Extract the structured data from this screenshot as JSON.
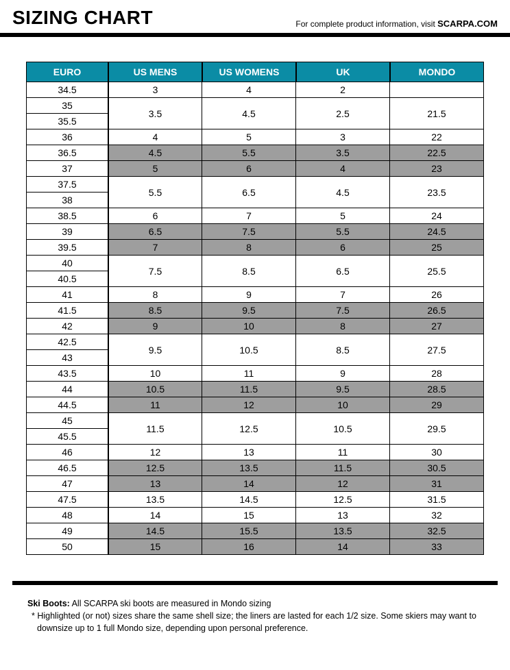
{
  "header": {
    "title": "SIZING CHART",
    "subtitle_prefix": "For complete product information, visit ",
    "brand": "SCARPA.COM"
  },
  "colors": {
    "header_bg": "#0b8ca5",
    "shade_bg": "#9e9e9e",
    "border": "#000000",
    "page_bg": "#ffffff"
  },
  "typography": {
    "title_fontsize": 28,
    "cell_fontsize": 14,
    "notes_fontsize": 12.5
  },
  "table": {
    "columns": [
      "EURO",
      "US MENS",
      "US WOMENS",
      "UK",
      "MONDO"
    ],
    "euro_sizes": [
      "34.5",
      "35",
      "35.5",
      "36",
      "36.5",
      "37",
      "37.5",
      "38",
      "38.5",
      "39",
      "39.5",
      "40",
      "40.5",
      "41",
      "41.5",
      "42",
      "42.5",
      "43",
      "43.5",
      "44",
      "44.5",
      "45",
      "45.5",
      "46",
      "46.5",
      "47",
      "47.5",
      "48",
      "49",
      "50"
    ],
    "euro_row_height": 23,
    "data_rows": [
      {
        "span": 1,
        "shaded": false,
        "cells": [
          "3",
          "4",
          "2",
          ""
        ]
      },
      {
        "span": 2,
        "shaded": false,
        "cells": [
          "3.5",
          "4.5",
          "2.5",
          "21.5"
        ]
      },
      {
        "span": 1,
        "shaded": false,
        "cells": [
          "4",
          "5",
          "3",
          "22"
        ]
      },
      {
        "span": 1,
        "shaded": true,
        "cells": [
          "4.5",
          "5.5",
          "3.5",
          "22.5"
        ]
      },
      {
        "span": 1,
        "shaded": true,
        "cells": [
          "5",
          "6",
          "4",
          "23"
        ]
      },
      {
        "span": 2,
        "shaded": false,
        "cells": [
          "5.5",
          "6.5",
          "4.5",
          "23.5"
        ]
      },
      {
        "span": 1,
        "shaded": false,
        "cells": [
          "6",
          "7",
          "5",
          "24"
        ]
      },
      {
        "span": 1,
        "shaded": true,
        "cells": [
          "6.5",
          "7.5",
          "5.5",
          "24.5"
        ]
      },
      {
        "span": 1,
        "shaded": true,
        "cells": [
          "7",
          "8",
          "6",
          "25"
        ]
      },
      {
        "span": 2,
        "shaded": false,
        "cells": [
          "7.5",
          "8.5",
          "6.5",
          "25.5"
        ]
      },
      {
        "span": 1,
        "shaded": false,
        "cells": [
          "8",
          "9",
          "7",
          "26"
        ]
      },
      {
        "span": 1,
        "shaded": true,
        "cells": [
          "8.5",
          "9.5",
          "7.5",
          "26.5"
        ]
      },
      {
        "span": 1,
        "shaded": true,
        "cells": [
          "9",
          "10",
          "8",
          "27"
        ]
      },
      {
        "span": 2,
        "shaded": false,
        "cells": [
          "9.5",
          "10.5",
          "8.5",
          "27.5"
        ]
      },
      {
        "span": 1,
        "shaded": false,
        "cells": [
          "10",
          "11",
          "9",
          "28"
        ]
      },
      {
        "span": 1,
        "shaded": true,
        "cells": [
          "10.5",
          "11.5",
          "9.5",
          "28.5"
        ]
      },
      {
        "span": 1,
        "shaded": true,
        "cells": [
          "11",
          "12",
          "10",
          "29"
        ]
      },
      {
        "span": 2,
        "shaded": false,
        "cells": [
          "11.5",
          "12.5",
          "10.5",
          "29.5"
        ]
      },
      {
        "span": 1,
        "shaded": false,
        "cells": [
          "12",
          "13",
          "11",
          "30"
        ]
      },
      {
        "span": 1,
        "shaded": true,
        "cells": [
          "12.5",
          "13.5",
          "11.5",
          "30.5"
        ]
      },
      {
        "span": 1,
        "shaded": true,
        "cells": [
          "13",
          "14",
          "12",
          "31"
        ]
      },
      {
        "span": 1,
        "shaded": false,
        "cells": [
          "13.5",
          "14.5",
          "12.5",
          "31.5"
        ]
      },
      {
        "span": 1,
        "shaded": false,
        "cells": [
          "14",
          "15",
          "13",
          "32"
        ]
      },
      {
        "span": 1,
        "shaded": true,
        "cells": [
          "14.5",
          "15.5",
          "13.5",
          "32.5"
        ]
      },
      {
        "span": 1,
        "shaded": true,
        "cells": [
          "15",
          "16",
          "14",
          "33"
        ]
      }
    ]
  },
  "notes": {
    "line1_label": "Ski Boots:",
    "line1_text": " All SCARPA ski boots are measured in Mondo sizing",
    "line2": "*  Highlighted (or not) sizes share the same shell size; the liners are lasted for each 1/2 size. Some skiers may want to downsize up to 1 full Mondo size, depending upon personal preference."
  }
}
